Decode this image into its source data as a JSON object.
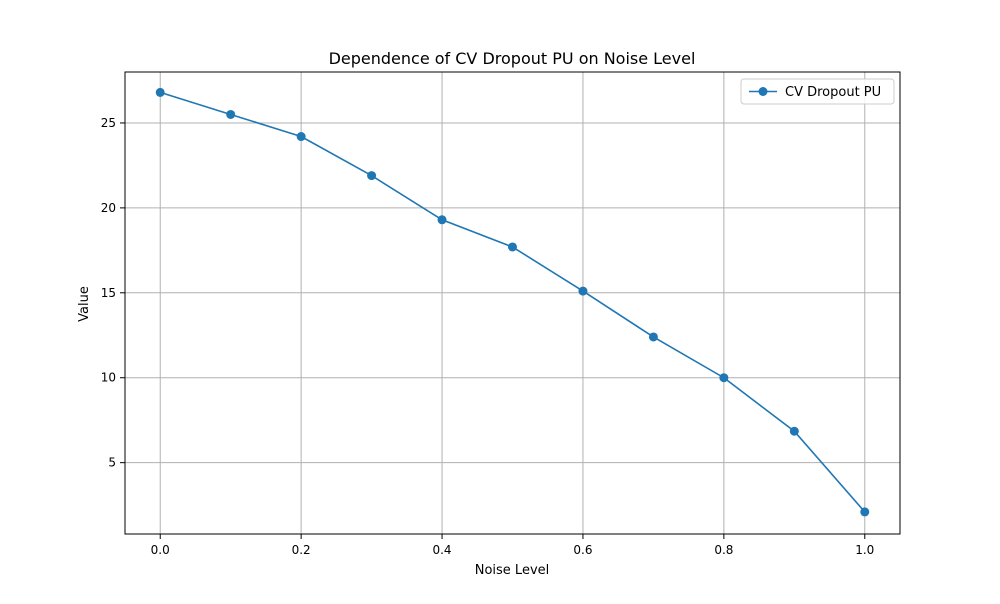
{
  "chart_data": {
    "type": "line",
    "title": "Dependence of CV Dropout PU on Noise Level",
    "xlabel": "Noise Level",
    "ylabel": "Value",
    "xlim": [
      -0.05,
      1.05
    ],
    "ylim": [
      0.8,
      28.0
    ],
    "x_ticks": [
      0.0,
      0.2,
      0.4,
      0.6,
      0.8,
      1.0
    ],
    "x_tick_labels": [
      "0.0",
      "0.2",
      "0.4",
      "0.6",
      "0.8",
      "1.0"
    ],
    "y_ticks": [
      5,
      10,
      15,
      20,
      25
    ],
    "y_tick_labels": [
      "5",
      "10",
      "15",
      "20",
      "25"
    ],
    "grid": true,
    "legend_position": "top-right",
    "series": [
      {
        "name": "CV Dropout PU",
        "color": "#1f77b4",
        "marker": "circle",
        "x": [
          0.0,
          0.1,
          0.2,
          0.3,
          0.4,
          0.5,
          0.6,
          0.7,
          0.8,
          0.9,
          1.0
        ],
        "y": [
          26.8,
          25.5,
          24.2,
          21.9,
          19.3,
          17.7,
          15.1,
          12.4,
          10.0,
          6.85,
          2.1
        ]
      }
    ]
  }
}
